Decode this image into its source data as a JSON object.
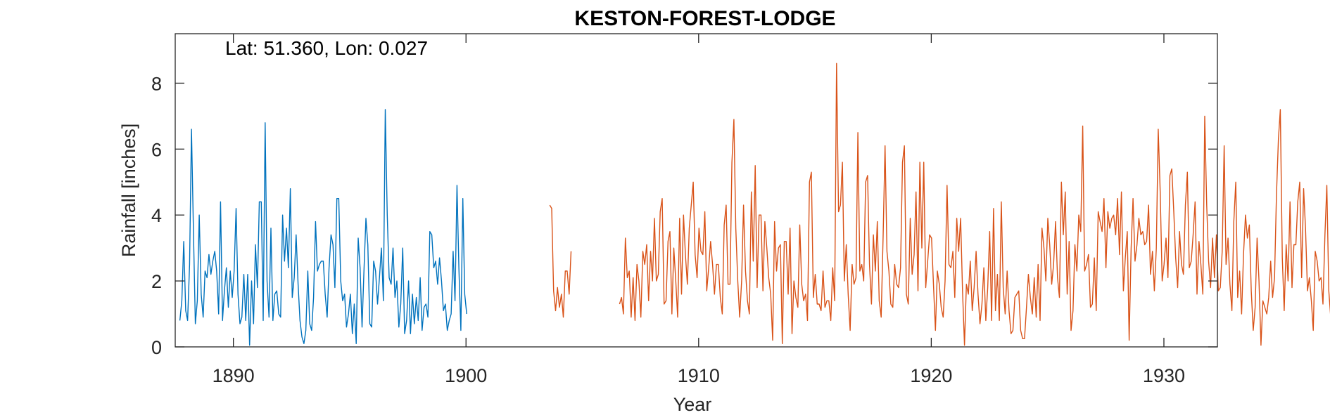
{
  "chart_data": {
    "type": "line",
    "title": "KESTON-FOREST-LODGE",
    "xlabel": "Year",
    "ylabel": "Rainfall [inches]",
    "annotation": "Lat: 51.360, Lon: 0.027",
    "xlim": [
      1887.5,
      1932.3
    ],
    "ylim": [
      0,
      9.5
    ],
    "xticks": [
      1890,
      1900,
      1910,
      1920,
      1930
    ],
    "yticks": [
      0,
      2,
      4,
      6,
      8
    ],
    "grid": false,
    "series": [
      {
        "color": "#0072BD",
        "x_start": 1887.7,
        "step": 0.0833,
        "values": [
          0.8,
          1.4,
          3.2,
          1.1,
          0.8,
          2.5,
          6.6,
          3.5,
          0.7,
          1.4,
          4.0,
          1.6,
          0.9,
          2.3,
          2.1,
          2.8,
          2.2,
          2.6,
          2.9,
          2.3,
          1.0,
          4.4,
          0.8,
          1.7,
          2.4,
          1.2,
          2.3,
          1.5,
          2.3,
          4.2,
          1.6,
          0.7,
          0.9,
          2.2,
          0.8,
          2.2,
          0.05,
          2.0,
          0.7,
          3.1,
          1.8,
          4.4,
          4.4,
          0.8,
          6.8,
          2.0,
          0.9,
          3.6,
          0.8,
          1.6,
          1.7,
          1.0,
          0.9,
          4.0,
          2.6,
          3.6,
          2.4,
          4.8,
          1.5,
          2.1,
          3.4,
          1.9,
          0.8,
          0.3,
          0.1,
          0.5,
          2.3,
          0.7,
          0.5,
          1.5,
          3.8,
          2.3,
          2.5,
          2.6,
          2.6,
          1.6,
          0.9,
          2.4,
          3.4,
          3.1,
          1.8,
          4.5,
          4.5,
          2.0,
          1.4,
          1.6,
          0.6,
          1.0,
          1.6,
          0.4,
          1.3,
          0.1,
          3.3,
          2.4,
          0.6,
          2.3,
          3.9,
          3.1,
          0.7,
          0.6,
          2.6,
          2.3,
          1.3,
          2.1,
          3.0,
          1.4,
          7.2,
          4.0,
          2.1,
          1.9,
          3.0,
          1.5,
          2.0,
          0.6,
          1.3,
          3.0,
          0.4,
          0.8,
          2.0,
          0.4,
          1.6,
          0.7,
          1.5,
          0.8,
          2.1,
          0.5,
          1.2,
          1.3,
          0.9,
          3.5,
          3.4,
          2.4,
          2.6,
          1.9,
          2.7,
          2.0,
          1.1,
          1.3,
          0.5,
          0.8,
          1.0,
          2.9,
          1.4,
          4.9,
          2.4,
          0.5,
          4.5,
          1.6,
          1.0
        ]
      },
      {
        "color": "#D95319",
        "segments": [
          {
            "x_start": 1903.6,
            "step": 0.0833,
            "values": [
              4.3,
              4.2,
              1.7,
              1.1,
              1.8,
              1.2,
              1.6,
              0.9,
              2.3,
              2.3,
              1.6,
              2.9
            ]
          },
          {
            "x_start": 1906.6,
            "step": 0.0833,
            "values": [
              1.3,
              1.5,
              1.0,
              3.3,
              2.1,
              2.3,
              0.9,
              2.1,
              0.8,
              2.5,
              2.0,
              0.9,
              2.9,
              2.5,
              3.1,
              1.4,
              2.9,
              2.0,
              3.9,
              2.0,
              2.2,
              4.1,
              4.5,
              1.3,
              1.4,
              3.2,
              3.5,
              1.0,
              3.0,
              2.0,
              0.9,
              3.9,
              1.6,
              4.0,
              2.8,
              1.9,
              3.6,
              4.3,
              5.0,
              2.8,
              2.1,
              3.6,
              2.9,
              2.8,
              4.1,
              1.7,
              2.4,
              3.2,
              2.5,
              1.6,
              2.5,
              2.5,
              1.5,
              1.0,
              3.7,
              4.3,
              1.9,
              1.9,
              5.6,
              6.9,
              3.6,
              2.0,
              0.9,
              2.0,
              4.3,
              2.3,
              1.4,
              1.0,
              4.7,
              2.6,
              5.5,
              1.8,
              4.0,
              4.0,
              1.7,
              3.8,
              3.0,
              2.1,
              1.6,
              0.2,
              3.8,
              2.3,
              3.0,
              3.1,
              0.1,
              3.2,
              3.2,
              1.6,
              3.6,
              0.4,
              2.0,
              1.5,
              1.2,
              3.7,
              1.9,
              1.4,
              1.6,
              0.8,
              5.0,
              5.3,
              1.5,
              2.2,
              1.3,
              1.3,
              1.1,
              2.3,
              1.2,
              1.4,
              1.4,
              0.8,
              2.4,
              1.4,
              8.6,
              4.1,
              4.3,
              5.6,
              2.0,
              3.1,
              1.6,
              0.5,
              2.5,
              1.9,
              2.1,
              6.5,
              2.3,
              2.5,
              2.0,
              5.0,
              5.2,
              2.5,
              1.3,
              3.4,
              2.3,
              3.8,
              1.4,
              0.9,
              3.3,
              6.1,
              2.9,
              2.3,
              1.3,
              1.2,
              2.5,
              1.9,
              1.8,
              2.4,
              5.6,
              6.1,
              1.6,
              1.3,
              3.9,
              2.2,
              2.8,
              4.7,
              1.7,
              5.6,
              3.0,
              5.6,
              1.8,
              2.6,
              3.4,
              3.3,
              1.9,
              0.5,
              2.3,
              1.9,
              1.2,
              0.9,
              2.0,
              4.9,
              2.5,
              2.4,
              2.9,
              1.5,
              3.9,
              2.9,
              3.9,
              1.7,
              0.05,
              1.9,
              1.6,
              2.6,
              1.1,
              1.8,
              2.9,
              1.6,
              0.7,
              1.3,
              2.4,
              0.8,
              1.8,
              3.5,
              0.8,
              4.2,
              1.1,
              2.2,
              0.8,
              4.4,
              1.8,
              1.0,
              2.3,
              1.1,
              0.4,
              0.5,
              1.5,
              1.6,
              1.7,
              0.5,
              0.25,
              0.25,
              1.2,
              2.2,
              1.5,
              1.0,
              2.1,
              0.9,
              2.5,
              0.8,
              3.6,
              3.0,
              2.0,
              3.9,
              3.1,
              1.9,
              2.5,
              3.8,
              2.1,
              1.5,
              5.0,
              3.4,
              4.7,
              1.6,
              3.2,
              0.5,
              1.1,
              3.1,
              2.3,
              4.0,
              3.5,
              6.7,
              2.3,
              2.5,
              2.8,
              1.2,
              1.3,
              2.7,
              1.1,
              4.1,
              3.8,
              3.5,
              4.5,
              2.4,
              4.1,
              3.6,
              3.9,
              4.0,
              3.4,
              4.5,
              2.8,
              4.7,
              1.7,
              2.7,
              3.5,
              0.2,
              3.0,
              4.5,
              2.6,
              3.1,
              3.9,
              3.4,
              3.5,
              3.1,
              3.2,
              4.3,
              2.2,
              2.9,
              1.7,
              3.0,
              6.6,
              4.7,
              2.0,
              2.5,
              3.3,
              2.1,
              5.2,
              5.4,
              4.1,
              2.7,
              1.8,
              3.5,
              2.5,
              2.2,
              4.3,
              5.3,
              2.4,
              2.6,
              3.4,
              4.4,
              1.6,
              3.2,
              2.5,
              1.6,
              7.0,
              4.3,
              2.6,
              1.8,
              3.3,
              2.1,
              3.4,
              1.7,
              1.8,
              2.9,
              6.1,
              2.5,
              3.3,
              1.9,
              1.1,
              3.8,
              5.0,
              1.5,
              2.3,
              1.0,
              2.8,
              4.0,
              3.3,
              3.7,
              1.7,
              0.5,
              1.2,
              3.3,
              2.0,
              0.05,
              1.4,
              1.2,
              1.0,
              1.5,
              2.6,
              1.5,
              2.1,
              4.6,
              6.3,
              7.2,
              2.7,
              1.1,
              3.1,
              2.0,
              4.4,
              1.8,
              3.1,
              3.1,
              4.4,
              5.0,
              2.1,
              4.8,
              3.6,
              1.7,
              2.1,
              1.4,
              0.5,
              2.9,
              2.6,
              2.0,
              2.1,
              1.3,
              3.4,
              4.9,
              1.7,
              0.9,
              3.7,
              1.1,
              0.8
            ]
          }
        ]
      }
    ]
  }
}
